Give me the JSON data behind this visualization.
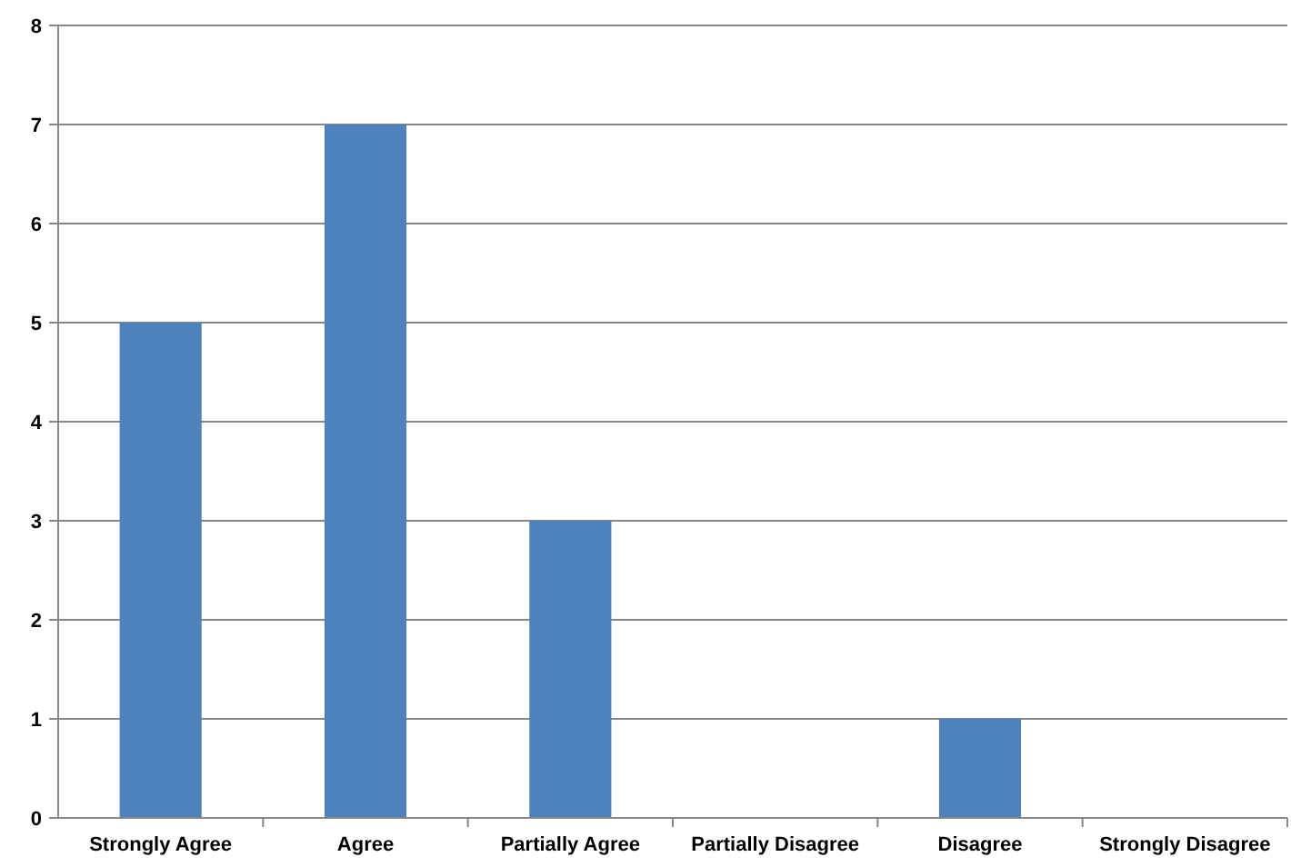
{
  "chart_data": {
    "type": "bar",
    "categories": [
      "Strongly Agree",
      "Agree",
      "Partially Agree",
      "Partially Disagree",
      "Disagree",
      "Strongly Disagree"
    ],
    "values": [
      5,
      7,
      3,
      0,
      1,
      0
    ],
    "color": "#4f81bd",
    "ylim": [
      0,
      8
    ],
    "yticks": [
      0,
      1,
      2,
      3,
      4,
      5,
      6,
      7,
      8
    ],
    "grid": "y"
  }
}
